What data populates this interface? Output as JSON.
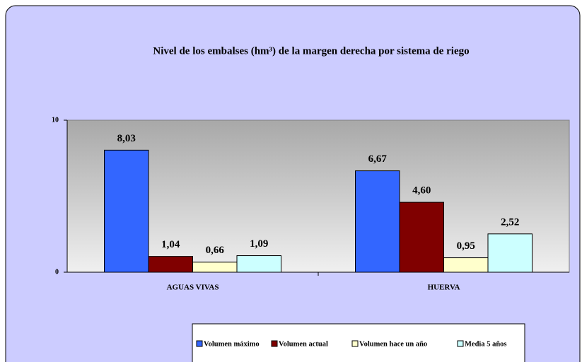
{
  "chart_data": {
    "type": "bar",
    "title": "Nivel de los embalses (hm³) de la margen derecha por sistema de riego",
    "categories": [
      "AGUAS VIVAS",
      "HUERVA"
    ],
    "series": [
      {
        "name": "Volumen máximo",
        "color": "#3366ff",
        "values": [
          8.03,
          6.67
        ],
        "value_labels": [
          "8,03",
          "6,67"
        ]
      },
      {
        "name": "Volumen actual",
        "color": "#800000",
        "values": [
          1.04,
          4.6
        ],
        "value_labels": [
          "1,04",
          "4,60"
        ]
      },
      {
        "name": "Volumen hace un año",
        "color": "#ffffcc",
        "values": [
          0.66,
          0.95
        ],
        "value_labels": [
          "0,66",
          "0,95"
        ]
      },
      {
        "name": "Media 5 años",
        "color": "#ccffff",
        "values": [
          1.09,
          2.52
        ],
        "value_labels": [
          "1,09",
          "2,52"
        ]
      }
    ],
    "ylim": [
      0,
      10
    ],
    "yticks": [
      0,
      10
    ],
    "grid": false,
    "legend": "bottom"
  }
}
